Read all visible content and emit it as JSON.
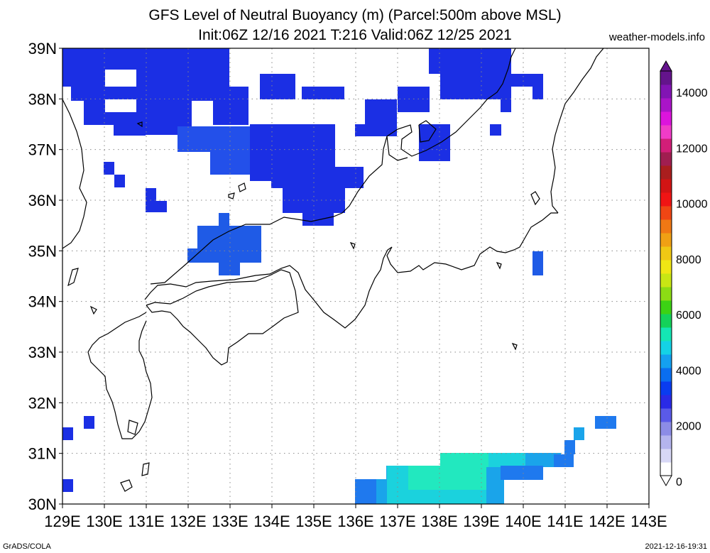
{
  "title_line1": "GFS Level of Neutral Buoyancy (m) (Parcel:500m above MSL)",
  "title_line2": "Init:06Z 12/16 2021 T:216 Valid:06Z 12/25 2021",
  "site": "weather-models.info",
  "footer_left": "GrADS/COLA",
  "footer_right": "2021-12-16-19:31",
  "map": {
    "lon_range": [
      129,
      143
    ],
    "lat_range": [
      30,
      39
    ],
    "lon_labels": [
      "129E",
      "130E",
      "131E",
      "132E",
      "133E",
      "134E",
      "135E",
      "136E",
      "137E",
      "138E",
      "139E",
      "140E",
      "141E",
      "142E",
      "143E"
    ],
    "lat_labels": [
      "30N",
      "31N",
      "32N",
      "33N",
      "34N",
      "35N",
      "36N",
      "37N",
      "38N",
      "39N"
    ],
    "gridlines": "dotted",
    "land_outline": "coastline (Japan, Korea, Sea of Japan)"
  },
  "colorbar": {
    "labels": [
      "0",
      "2000",
      "4000",
      "6000",
      "8000",
      "10000",
      "12000",
      "14000"
    ],
    "colors": [
      "#ffffff",
      "#d8d8f6",
      "#b4b4ee",
      "#8c8ce6",
      "#5a5ae8",
      "#2a2ae6",
      "#0a3cf0",
      "#0a6ef0",
      "#14a0f0",
      "#14d2e6",
      "#14e6b4",
      "#14d25a",
      "#3cd214",
      "#8cdc14",
      "#c8e614",
      "#f0e614",
      "#f0c814",
      "#f0a014",
      "#f07814",
      "#f04614",
      "#f01414",
      "#d21414",
      "#aa1e1e",
      "#a01e50",
      "#d21e78",
      "#f03cc8",
      "#dc14dc",
      "#aa14c8",
      "#8214b4",
      "#64148c"
    ]
  },
  "legend_colors": {
    "lnb_1000_2000": "#1b2fe4",
    "lnb_1500_2500": "#2350ea",
    "lnb_2000_3000": "#1f79ee",
    "lnb_2500_3500": "#1aa4ea",
    "lnb_3000_4000": "#1bd2dd",
    "lnb_3500_4500": "#22e8bf"
  }
}
